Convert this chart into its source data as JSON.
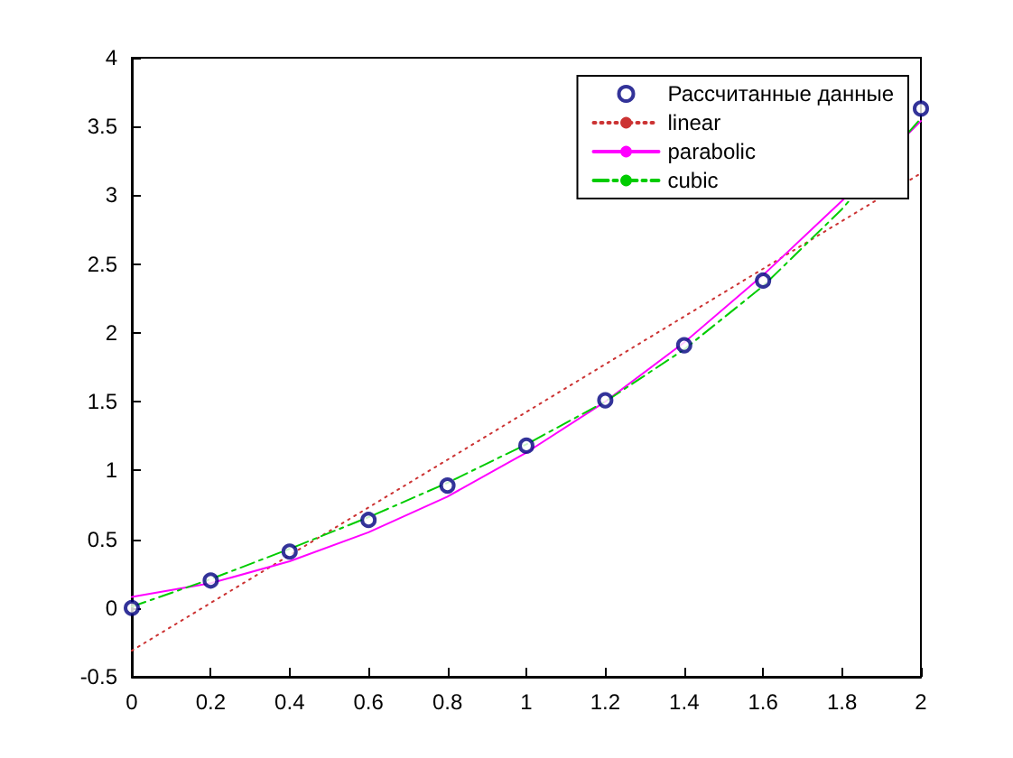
{
  "chart_data": {
    "type": "line",
    "xlim": [
      0,
      2
    ],
    "xticks": [
      0,
      0.2,
      0.4,
      0.6,
      0.8,
      1,
      1.2,
      1.4,
      1.6,
      1.8,
      2
    ],
    "ylim": [
      -0.5,
      4
    ],
    "yticks": [
      -0.5,
      0,
      0.5,
      1,
      1.5,
      2,
      2.5,
      3,
      3.5,
      4
    ],
    "grid": false,
    "legend": "top right",
    "series": [
      {
        "name": "Рассчитанные данные",
        "type": "scatter",
        "marker": "circle",
        "color": "#000080",
        "x": [
          0,
          0.2,
          0.4,
          0.6,
          0.8,
          1,
          1.2,
          1.4,
          1.6,
          1.8,
          2
        ],
        "values": [
          0,
          0.2,
          0.41,
          0.64,
          0.89,
          1.18,
          1.51,
          1.91,
          2.38,
          null,
          3.63
        ]
      },
      {
        "name": "linear",
        "line_style": "dotted",
        "color": "#cc3333",
        "x": [
          0,
          2
        ],
        "values": [
          -0.31,
          3.16
        ]
      },
      {
        "name": "parabolic",
        "line_style": "solid",
        "color": "#ff00ff",
        "x": [
          0,
          0.2,
          0.4,
          0.6,
          0.8,
          1,
          1.2,
          1.4,
          1.6,
          1.8,
          2
        ],
        "values": [
          0.08,
          0.18,
          0.34,
          0.55,
          0.81,
          1.13,
          1.5,
          1.93,
          2.42,
          2.96,
          3.54
        ]
      },
      {
        "name": "cubic",
        "line_style": "dashed",
        "color": "#00cc00",
        "x": [
          0,
          0.2,
          0.4,
          0.6,
          0.8,
          1,
          1.2,
          1.4,
          1.6,
          1.8,
          2
        ],
        "values": [
          0.01,
          0.21,
          0.43,
          0.66,
          0.91,
          1.19,
          1.5,
          1.88,
          2.34,
          2.9,
          3.56
        ]
      }
    ]
  }
}
